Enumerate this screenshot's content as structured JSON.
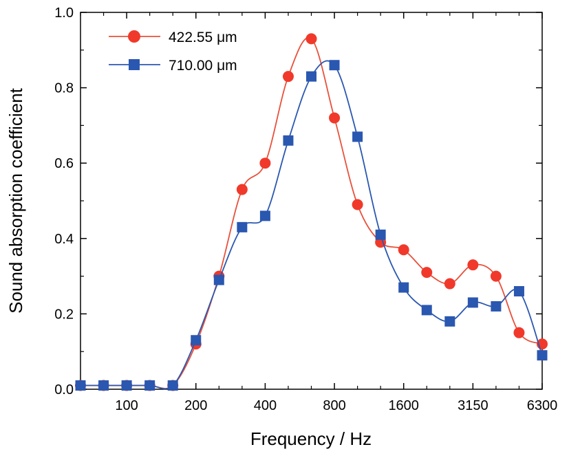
{
  "chart_data": {
    "type": "line",
    "xlabel": "Frequency / Hz",
    "ylabel": "Sound absorption coefficient",
    "ylim": [
      0,
      1.0
    ],
    "yticks": [
      "0.0",
      "0.2",
      "0.4",
      "0.6",
      "0.8",
      "1.0"
    ],
    "xtick_labels": [
      "100",
      "200",
      "400",
      "800",
      "1600",
      "3150",
      "6300"
    ],
    "x_scale": "log (one-third octave bands)",
    "x": [
      63,
      80,
      100,
      125,
      160,
      200,
      250,
      315,
      400,
      500,
      630,
      800,
      1000,
      1250,
      1600,
      2000,
      2500,
      3150,
      4000,
      5000,
      6300
    ],
    "legend_position": "top-left",
    "grid": false,
    "series": [
      {
        "name": "422.55 μm",
        "color": "#f0392b",
        "line_color": "#e8503a",
        "marker": "circle",
        "values": [
          0.01,
          0.01,
          0.01,
          0.01,
          0.01,
          0.12,
          0.3,
          0.53,
          0.6,
          0.83,
          0.93,
          0.72,
          0.49,
          0.39,
          0.37,
          0.31,
          0.28,
          0.33,
          0.3,
          0.15,
          0.12
        ]
      },
      {
        "name": "710.00 μm",
        "color": "#2a57b0",
        "line_color": "#2a57b0",
        "marker": "square",
        "values": [
          0.01,
          0.01,
          0.01,
          0.01,
          0.01,
          0.13,
          0.29,
          0.43,
          0.46,
          0.66,
          0.83,
          0.86,
          0.67,
          0.41,
          0.27,
          0.21,
          0.18,
          0.23,
          0.22,
          0.26,
          0.09
        ]
      }
    ]
  }
}
